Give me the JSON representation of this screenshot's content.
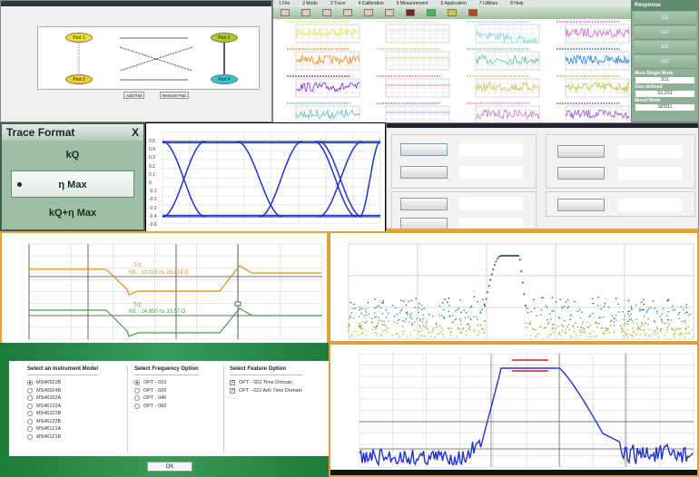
{
  "port_dialog": {
    "ports": [
      "Port 1",
      "Port 2",
      "Port 3",
      "Port 4"
    ],
    "buttons": [
      "Add Pair",
      "Remove Pair"
    ]
  },
  "multi_trace": {
    "menu": [
      "1 File",
      "2 Mode",
      "3 Trace",
      "4 Calibration",
      "5 Measurement",
      "6 Application",
      "7 Utilities",
      "8 Help"
    ],
    "trace_colors": [
      "#e8e84a",
      "#cfd8cf",
      "#7fd8e0",
      "#e060e0",
      "#f08a20",
      "#b8d060",
      "#60c8a8",
      "#2080e0",
      "#8020e0",
      "#e07090",
      "#d0c060",
      "#c0c020",
      "#60b8c0",
      "#8080e0",
      "#d080c0",
      "#9050e0"
    ]
  },
  "response_panel": {
    "title": "Response",
    "buttons": [
      "S11",
      "S12",
      "S21",
      "S22"
    ],
    "more_single_mode_label": "More Single Mode",
    "more_single_mode_value": "S11",
    "user_defined_label": "User-defined",
    "user_defined_value": "S1,2S1",
    "mixed_mode_label": "Mixed Mode",
    "mixed_mode_value": "SDD11"
  },
  "trace_format": {
    "title": "Trace Format",
    "close": "X",
    "options": [
      "kQ",
      "η Max",
      "kQ+η Max"
    ],
    "selected": "η Max"
  },
  "eye_diagram": {
    "y_ticks": [
      "0.6",
      "0.4",
      "0.3",
      "0.2",
      "0.1",
      "0",
      "-0.1",
      "-0.2",
      "-0.3",
      "-0.4",
      "-0.6"
    ]
  },
  "tdr_plot": {
    "trace1_label": "Tr1",
    "trace1_marker": "M1 : 10.015 ns 26.816 Ω",
    "trace2_label": "Tr2",
    "trace2_marker": "M1 : 14.850 ns 33.57 Ω"
  },
  "instrument_dialog": {
    "model_header": "Select an Instrument Model",
    "models": [
      "MS46522B",
      "MS46524B",
      "MS46322A",
      "MS46122A",
      "MS46322B",
      "MS46122B",
      "MS46121A",
      "MS46121B"
    ],
    "selected_model": "MS46522B",
    "freq_header": "Select Frequency Option",
    "freqs": [
      "OPT - 010",
      "OPT - 020",
      "OPT - 040",
      "OPT - 082"
    ],
    "selected_freq": "OPT - 010",
    "feature_header": "Select Feature Option",
    "features": [
      "OPT - 002 Time Domain",
      "OPT - 022 Adv Time Domain"
    ],
    "ok": "OK"
  },
  "colors": {
    "green": "#1c7a3b",
    "orange_frame": "#e8a23c",
    "trace_blue": "#2233cc",
    "limit_red": "#d02020"
  }
}
